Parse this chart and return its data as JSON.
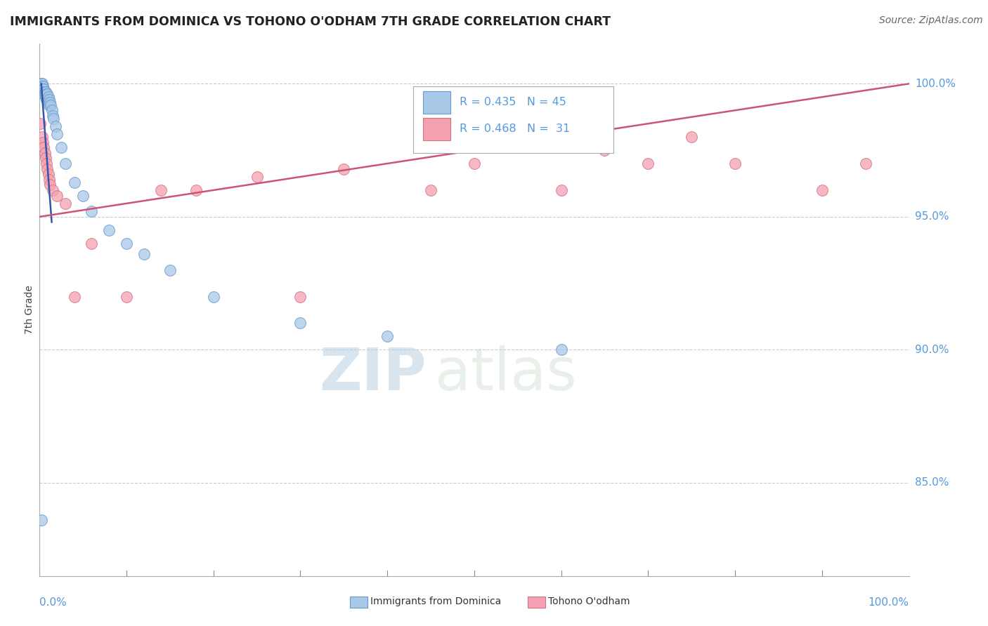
{
  "title": "IMMIGRANTS FROM DOMINICA VS TOHONO O'ODHAM 7TH GRADE CORRELATION CHART",
  "source": "Source: ZipAtlas.com",
  "ylabel": "7th Grade",
  "x_range": [
    0.0,
    1.0
  ],
  "y_range": [
    0.815,
    1.015
  ],
  "y_ticks": [
    0.85,
    0.9,
    0.95,
    1.0
  ],
  "y_tick_labels": [
    "85.0%",
    "90.0%",
    "95.0%",
    "100.0%"
  ],
  "blue_color": "#a8c8e8",
  "blue_edge_color": "#6699cc",
  "pink_color": "#f4a0b0",
  "pink_edge_color": "#d47080",
  "blue_line_color": "#3355aa",
  "pink_line_color": "#cc5577",
  "tick_label_color": "#5599dd",
  "grid_color": "#cccccc",
  "watermark_color": "#c8d8e8",
  "blue_scatter_x": [
    0.001,
    0.001,
    0.002,
    0.002,
    0.003,
    0.003,
    0.003,
    0.004,
    0.004,
    0.005,
    0.005,
    0.005,
    0.006,
    0.006,
    0.007,
    0.007,
    0.008,
    0.008,
    0.009,
    0.009,
    0.01,
    0.01,
    0.011,
    0.011,
    0.012,
    0.013,
    0.014,
    0.015,
    0.016,
    0.018,
    0.02,
    0.025,
    0.03,
    0.04,
    0.05,
    0.06,
    0.08,
    0.1,
    0.12,
    0.15,
    0.2,
    0.3,
    0.4,
    0.6,
    0.002
  ],
  "blue_scatter_y": [
    1.0,
    0.999,
    1.0,
    0.999,
    1.0,
    0.999,
    0.998,
    0.999,
    0.998,
    0.998,
    0.997,
    0.996,
    0.997,
    0.996,
    0.997,
    0.995,
    0.996,
    0.994,
    0.996,
    0.994,
    0.995,
    0.993,
    0.994,
    0.992,
    0.993,
    0.992,
    0.99,
    0.988,
    0.987,
    0.984,
    0.981,
    0.976,
    0.97,
    0.963,
    0.958,
    0.952,
    0.945,
    0.94,
    0.936,
    0.93,
    0.92,
    0.91,
    0.905,
    0.9,
    0.836
  ],
  "pink_scatter_x": [
    0.001,
    0.003,
    0.004,
    0.005,
    0.006,
    0.007,
    0.008,
    0.009,
    0.01,
    0.011,
    0.012,
    0.015,
    0.02,
    0.03,
    0.04,
    0.06,
    0.1,
    0.14,
    0.18,
    0.25,
    0.3,
    0.35,
    0.45,
    0.5,
    0.6,
    0.65,
    0.7,
    0.75,
    0.8,
    0.9,
    0.95
  ],
  "pink_scatter_y": [
    0.985,
    0.98,
    0.978,
    0.976,
    0.974,
    0.972,
    0.97,
    0.968,
    0.966,
    0.964,
    0.962,
    0.96,
    0.958,
    0.955,
    0.92,
    0.94,
    0.92,
    0.96,
    0.96,
    0.965,
    0.92,
    0.968,
    0.96,
    0.97,
    0.96,
    0.975,
    0.97,
    0.98,
    0.97,
    0.96,
    0.97
  ],
  "blue_line_x": [
    0.002,
    0.014
  ],
  "blue_line_y": [
    1.0,
    0.948
  ],
  "pink_line_x": [
    0.0,
    1.0
  ],
  "pink_line_y": [
    0.95,
    1.0
  ],
  "legend_blue_r": "R = 0.435",
  "legend_blue_n": "N = 45",
  "legend_pink_r": "R = 0.468",
  "legend_pink_n": "N =  31",
  "legend_label_blue": "Immigrants from Dominica",
  "legend_label_pink": "Tohono O'odham"
}
